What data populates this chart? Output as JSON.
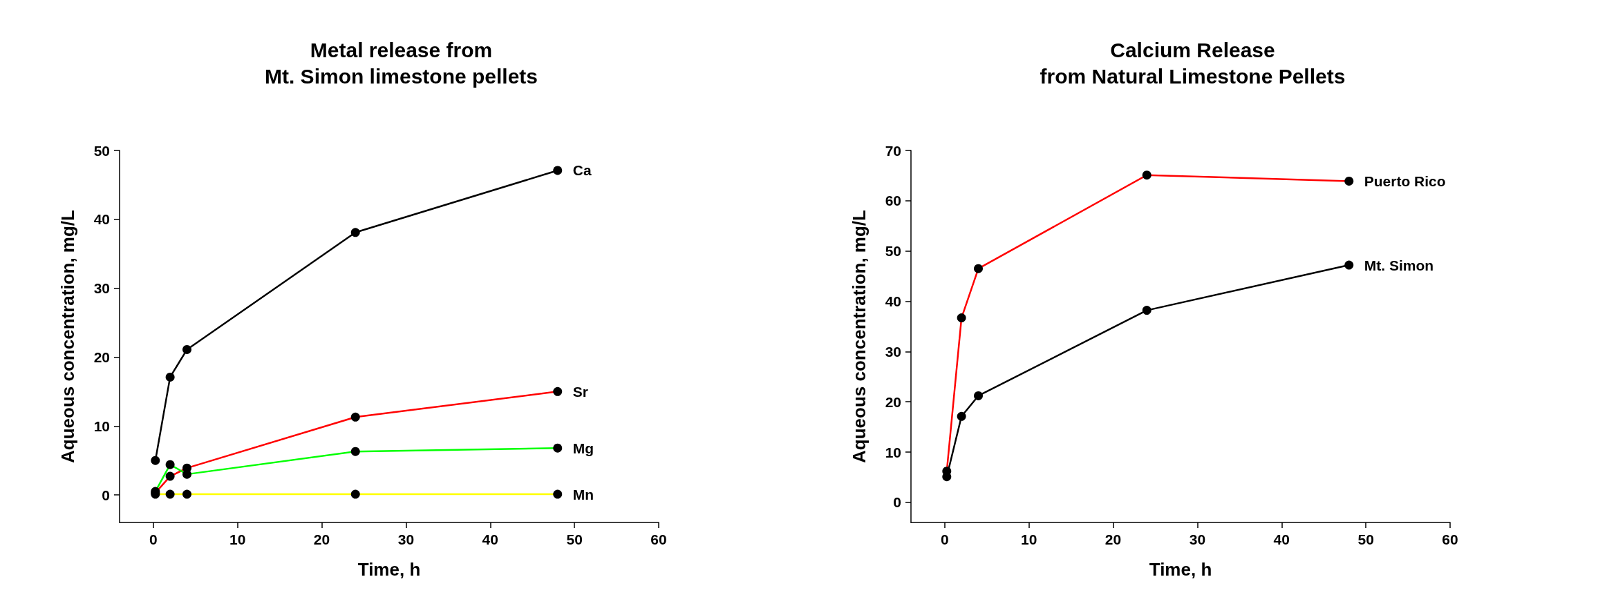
{
  "chart_data": [
    {
      "type": "line",
      "title": "Metal release from\nMt. Simon limestone pellets",
      "xlabel": "Time, h",
      "ylabel": "Aqueous concentration, mg/L",
      "x": [
        0.25,
        2,
        4,
        24,
        48
      ],
      "series": [
        {
          "name": "Ca",
          "color": "#000000",
          "values": [
            5.0,
            17.1,
            21.1,
            38.1,
            47.1
          ]
        },
        {
          "name": "Sr",
          "color": "#ff0000",
          "values": [
            0.3,
            2.7,
            3.9,
            11.3,
            15.0
          ]
        },
        {
          "name": "Mg",
          "color": "#00ff00",
          "values": [
            0.5,
            4.4,
            3.0,
            6.3,
            6.8
          ]
        },
        {
          "name": "Mn",
          "color": "#ffff00",
          "values": [
            0.1,
            0.1,
            0.1,
            0.1,
            0.1
          ]
        }
      ],
      "xlim": [
        -4,
        60
      ],
      "xticks": [
        0,
        10,
        20,
        30,
        40,
        50,
        60
      ],
      "ylim": [
        -4,
        50
      ],
      "yticks": [
        0,
        10,
        20,
        30,
        40,
        50
      ],
      "marker": "circle",
      "line_style": "solid",
      "grid": false,
      "legend": false
    },
    {
      "type": "line",
      "title": "Calcium Release\nfrom Natural Limestone Pellets",
      "xlabel": "Time, h",
      "ylabel": "Aqueous concentration, mg/L",
      "x": [
        0.25,
        2,
        4,
        24,
        48
      ],
      "series": [
        {
          "name": "Puerto Rico",
          "color": "#ff0000",
          "values": [
            6.2,
            36.7,
            46.5,
            65.1,
            63.9
          ]
        },
        {
          "name": "Mt. Simon",
          "color": "#000000",
          "values": [
            5.1,
            17.1,
            21.2,
            38.2,
            47.2
          ]
        }
      ],
      "xlim": [
        -4,
        60
      ],
      "xticks": [
        0,
        10,
        20,
        30,
        40,
        50,
        60
      ],
      "ylim": [
        -4,
        70
      ],
      "yticks": [
        0,
        10,
        20,
        30,
        40,
        50,
        60,
        70
      ],
      "marker": "circle",
      "line_style": "solid",
      "grid": false,
      "legend": false
    }
  ]
}
